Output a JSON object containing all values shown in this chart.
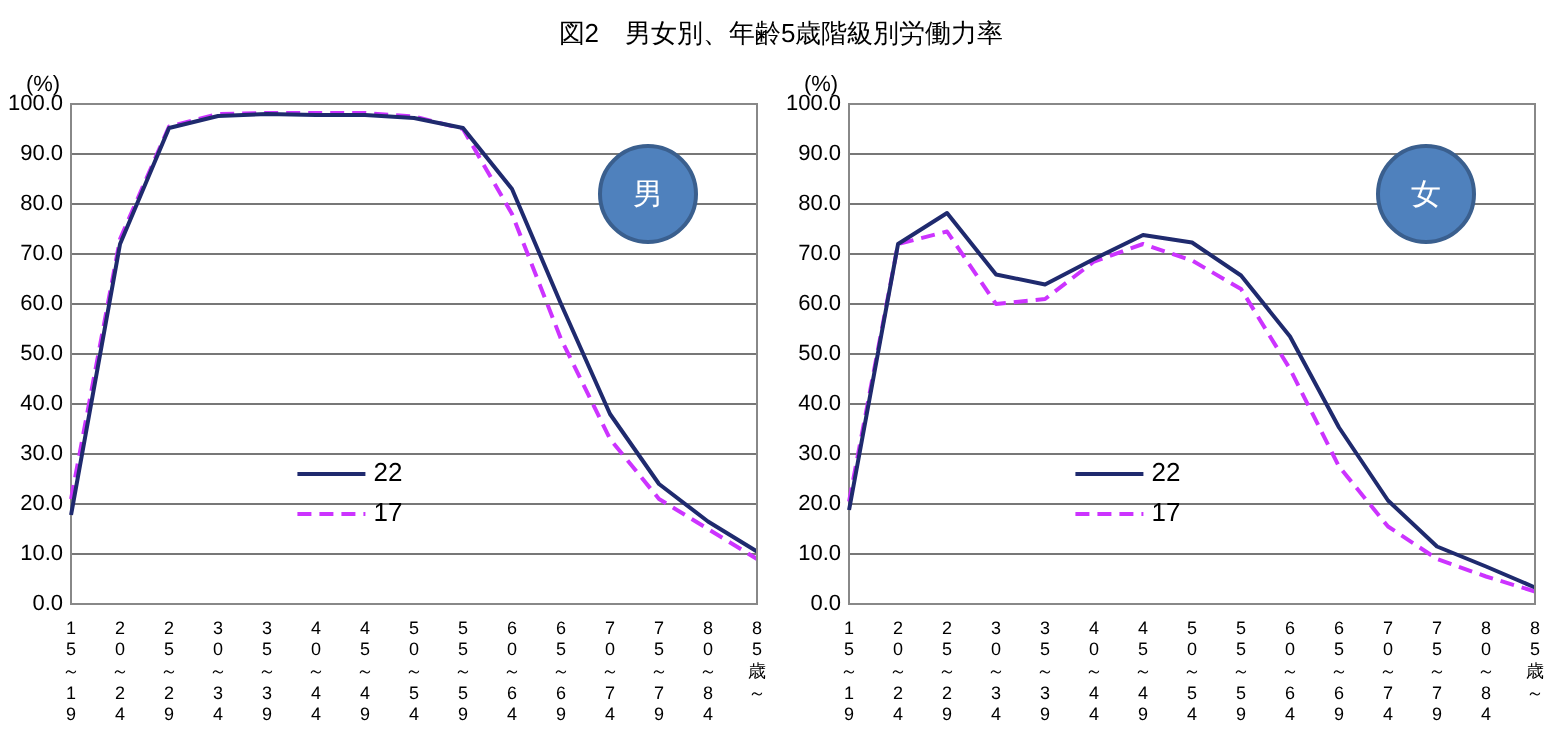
{
  "chart_data": [
    {
      "type": "line",
      "title": "図2　男女別、年齢5歳階級別労働力率",
      "ylabel": "(%)",
      "categories": [
        "15～19",
        "20～24",
        "25～29",
        "30～34",
        "35～39",
        "40～44",
        "45～49",
        "50～54",
        "55～59",
        "60～64",
        "65～69",
        "70～74",
        "75～79",
        "80～84",
        "85歳～"
      ],
      "series": [
        {
          "name": "22",
          "color": "#1f2a6e",
          "line_style": "solid",
          "values": [
            17.8,
            72,
            95.2,
            97.6,
            98.0,
            97.8,
            97.8,
            97.2,
            95.2,
            83,
            60,
            38,
            24,
            16.5,
            10.5
          ]
        },
        {
          "name": "17",
          "color": "#cc33ff",
          "line_style": "dashed",
          "values": [
            21,
            73,
            95.5,
            98,
            98.2,
            98.2,
            98.2,
            97.5,
            95,
            78,
            53,
            33,
            21,
            15,
            9
          ]
        }
      ],
      "ylim": [
        0,
        100
      ],
      "yticks": [
        {
          "value": 0,
          "label": "0.0"
        },
        {
          "value": 10,
          "label": "10.0"
        },
        {
          "value": 20,
          "label": "20.0"
        },
        {
          "value": 30,
          "label": "30.0"
        },
        {
          "value": 40,
          "label": "40.0"
        },
        {
          "value": 50,
          "label": "50.0"
        },
        {
          "value": 60,
          "label": "60.0"
        },
        {
          "value": 70,
          "label": "70.0"
        },
        {
          "value": 80,
          "label": "80.0"
        },
        {
          "value": 90,
          "label": "90.0"
        },
        {
          "value": 100,
          "label": "100.0"
        }
      ],
      "grid": "y",
      "legend": "bottom left",
      "marker": "none",
      "annotations": [
        "男"
      ]
    },
    {
      "type": "line",
      "ylabel": "(%)",
      "categories": [
        "15～19",
        "20～24",
        "25～29",
        "30～34",
        "35～39",
        "40～44",
        "45～49",
        "50～54",
        "55～59",
        "60～64",
        "65～69",
        "70～74",
        "75～79",
        "80～84",
        "85歳～"
      ],
      "series": [
        {
          "name": "22",
          "color": "#1f2a6e",
          "line_style": "solid",
          "values": [
            18.8,
            72,
            78.2,
            65.9,
            63.9,
            69,
            73.8,
            72.3,
            65.7,
            53.5,
            35.3,
            20.7,
            11.5,
            7.5,
            3.3
          ]
        },
        {
          "name": "17",
          "color": "#cc33ff",
          "line_style": "dashed",
          "values": [
            20.5,
            72,
            74.5,
            60,
            61,
            68.5,
            72,
            68.7,
            63,
            47,
            27.5,
            15.5,
            9,
            5.5,
            2.5
          ]
        }
      ],
      "ylim": [
        0,
        100
      ],
      "yticks": [
        {
          "value": 0,
          "label": "0.0"
        },
        {
          "value": 10,
          "label": "10.0"
        },
        {
          "value": 20,
          "label": "20.0"
        },
        {
          "value": 30,
          "label": "30.0"
        },
        {
          "value": 40,
          "label": "40.0"
        },
        {
          "value": 50,
          "label": "50.0"
        },
        {
          "value": 60,
          "label": "60.0"
        },
        {
          "value": 70,
          "label": "70.0"
        },
        {
          "value": 80,
          "label": "80.0"
        },
        {
          "value": 90,
          "label": "90.0"
        },
        {
          "value": 100,
          "label": "100.0"
        }
      ],
      "grid": "y",
      "legend": "bottom left",
      "marker": "none",
      "annotations": [
        "女"
      ]
    }
  ]
}
